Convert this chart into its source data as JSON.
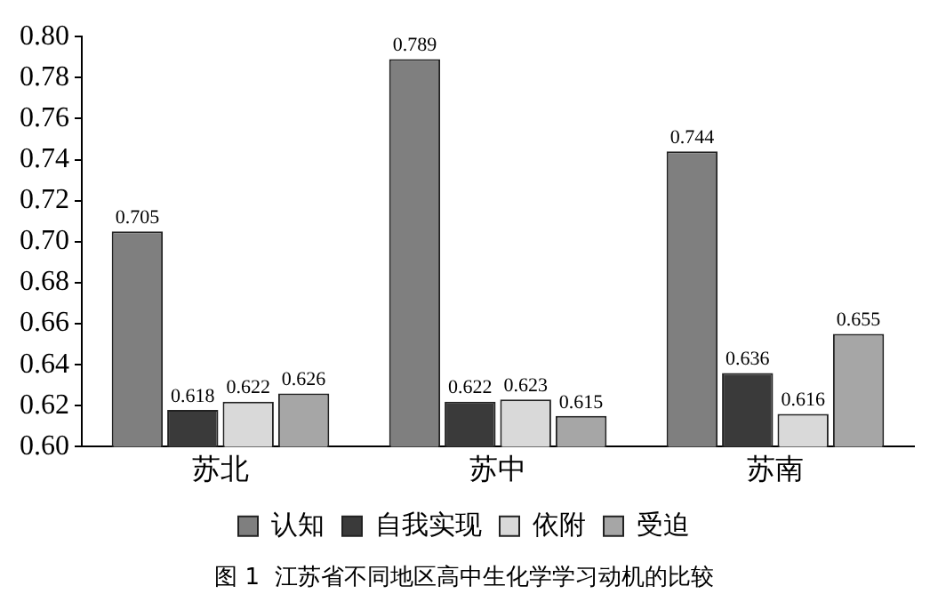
{
  "chart_data": {
    "type": "bar",
    "title": "图 1  江苏省不同地区高中生化学学习动机的比较",
    "categories": [
      "苏北",
      "苏中",
      "苏南"
    ],
    "series": [
      {
        "name": "认知",
        "color": "#7f7f7f",
        "values": [
          0.705,
          0.789,
          0.744
        ]
      },
      {
        "name": "自我实现",
        "color": "#3a3a3a",
        "values": [
          0.618,
          0.622,
          0.636
        ]
      },
      {
        "name": "依附",
        "color": "#d9d9d9",
        "values": [
          0.622,
          0.623,
          0.616
        ]
      },
      {
        "name": "受迫",
        "color": "#a6a6a6",
        "values": [
          0.626,
          0.615,
          0.655
        ]
      }
    ],
    "ylim": [
      0.6,
      0.8
    ],
    "yticks": [
      {
        "value": 0.6,
        "label": "0.60"
      },
      {
        "value": 0.62,
        "label": "0.62"
      },
      {
        "value": 0.64,
        "label": "0.64"
      },
      {
        "value": 0.66,
        "label": "0.66"
      },
      {
        "value": 0.68,
        "label": "0.68"
      },
      {
        "value": 0.7,
        "label": "0.70"
      },
      {
        "value": 0.72,
        "label": "0.72"
      },
      {
        "value": 0.74,
        "label": "0.74"
      },
      {
        "value": 0.76,
        "label": "0.76"
      },
      {
        "value": 0.78,
        "label": "0.78"
      },
      {
        "value": 0.8,
        "label": "0.80"
      }
    ],
    "data_labels": true,
    "grid": false,
    "legend": "bottom"
  }
}
